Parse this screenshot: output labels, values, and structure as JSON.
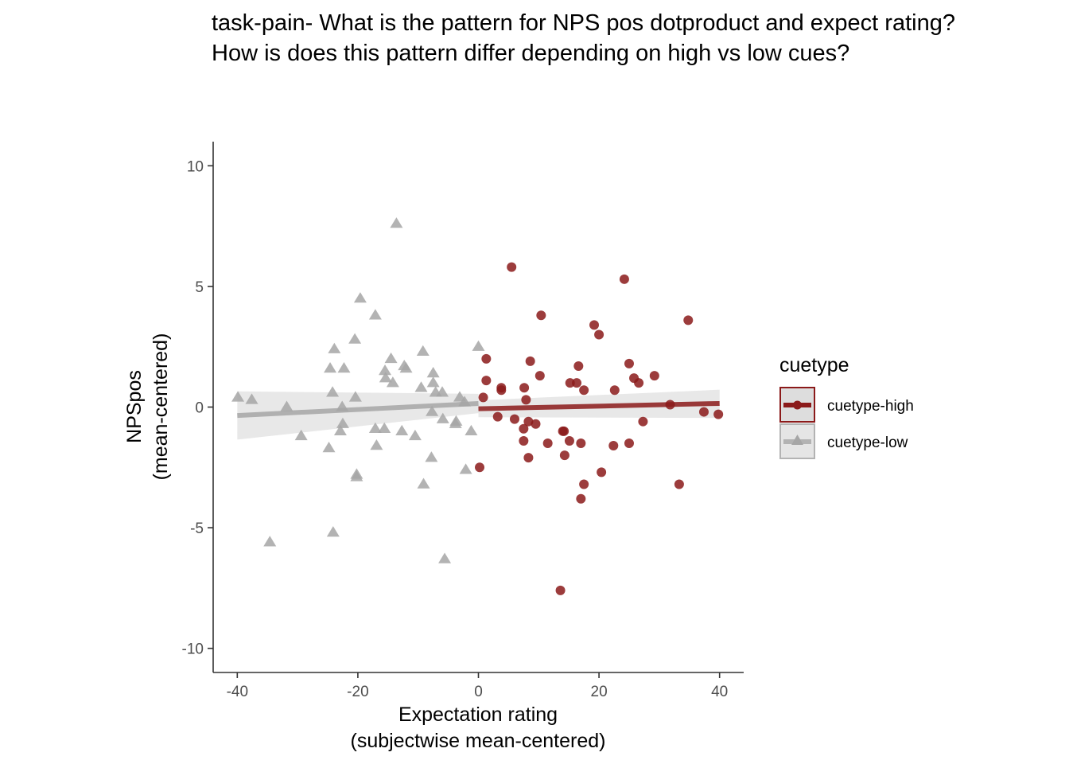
{
  "chart_data": {
    "type": "scatter",
    "title_lines": [
      "task-pain- What is the pattern for NPS pos dotproduct and expect rating?",
      "How is does this pattern differ depending on high vs low cues?"
    ],
    "xlabel_lines": [
      "Expectation rating",
      "(subjectwise mean-centered)"
    ],
    "ylabel_lines": [
      "NPSpos",
      "(mean-centered)"
    ],
    "xlim": [
      -44,
      44
    ],
    "ylim": [
      -11,
      11
    ],
    "x_ticks": [
      -40,
      -20,
      0,
      20,
      40
    ],
    "y_ticks": [
      -10,
      -5,
      0,
      5,
      10
    ],
    "x_tick_labels": [
      "-40",
      "-20",
      "0",
      "20",
      "40"
    ],
    "y_tick_labels": [
      "-10",
      "-5",
      "0",
      "5",
      "10"
    ],
    "grid": false,
    "legend": {
      "title": "cuetype",
      "position": "right",
      "entries": [
        "cuetype-high",
        "cuetype-low"
      ]
    },
    "series": [
      {
        "name": "cuetype-high",
        "marker": "circle",
        "color": "#8b1a1a",
        "points": [
          [
            5.5,
            5.8
          ],
          [
            24.2,
            5.3
          ],
          [
            34.8,
            3.6
          ],
          [
            10.4,
            3.8
          ],
          [
            19.2,
            3.4
          ],
          [
            20.0,
            3.0
          ],
          [
            1.3,
            2.0
          ],
          [
            8.6,
            1.9
          ],
          [
            25.0,
            1.8
          ],
          [
            16.6,
            1.7
          ],
          [
            10.2,
            1.3
          ],
          [
            29.2,
            1.3
          ],
          [
            25.8,
            1.2
          ],
          [
            1.3,
            1.1
          ],
          [
            15.2,
            1.0
          ],
          [
            16.3,
            1.0
          ],
          [
            26.6,
            1.0
          ],
          [
            3.8,
            0.8
          ],
          [
            3.8,
            0.7
          ],
          [
            7.6,
            0.8
          ],
          [
            17.5,
            0.7
          ],
          [
            22.6,
            0.7
          ],
          [
            0.8,
            0.4
          ],
          [
            7.9,
            0.3
          ],
          [
            31.8,
            0.1
          ],
          [
            37.4,
            -0.2
          ],
          [
            39.8,
            -0.3
          ],
          [
            3.2,
            -0.4
          ],
          [
            6.0,
            -0.5
          ],
          [
            8.3,
            -0.6
          ],
          [
            9.5,
            -0.7
          ],
          [
            27.3,
            -0.6
          ],
          [
            7.5,
            -0.9
          ],
          [
            14.0,
            -1.0
          ],
          [
            14.2,
            -1.0
          ],
          [
            7.5,
            -1.4
          ],
          [
            11.5,
            -1.5
          ],
          [
            15.1,
            -1.4
          ],
          [
            17.0,
            -1.5
          ],
          [
            22.4,
            -1.6
          ],
          [
            25.0,
            -1.5
          ],
          [
            14.3,
            -2.0
          ],
          [
            8.3,
            -2.1
          ],
          [
            0.2,
            -2.5
          ],
          [
            20.4,
            -2.7
          ],
          [
            17.5,
            -3.2
          ],
          [
            33.3,
            -3.2
          ],
          [
            17.0,
            -3.8
          ],
          [
            13.6,
            -7.6
          ]
        ],
        "fit": {
          "x0": 0,
          "y0": -0.07,
          "x1": 40,
          "y1": 0.15
        },
        "band": {
          "x": [
            0,
            40
          ],
          "lower": [
            -0.42,
            -0.45
          ],
          "upper": [
            0.28,
            0.72
          ]
        }
      },
      {
        "name": "cuetype-low",
        "marker": "triangle",
        "color": "#a6a6a6",
        "points": [
          [
            -13.6,
            7.6
          ],
          [
            -19.6,
            4.5
          ],
          [
            -17.1,
            3.8
          ],
          [
            -20.5,
            2.8
          ],
          [
            -23.9,
            2.4
          ],
          [
            -9.2,
            2.3
          ],
          [
            0.0,
            2.5
          ],
          [
            -14.5,
            2.0
          ],
          [
            -12.3,
            1.7
          ],
          [
            -12.0,
            1.6
          ],
          [
            -24.6,
            1.6
          ],
          [
            -22.3,
            1.6
          ],
          [
            -15.5,
            1.5
          ],
          [
            -15.4,
            1.2
          ],
          [
            -7.5,
            1.4
          ],
          [
            -14.2,
            1.0
          ],
          [
            -7.5,
            1.0
          ],
          [
            -9.5,
            0.8
          ],
          [
            -7.1,
            0.6
          ],
          [
            -24.2,
            0.6
          ],
          [
            -6.0,
            0.6
          ],
          [
            -39.9,
            0.4
          ],
          [
            -37.6,
            0.3
          ],
          [
            -20.4,
            0.4
          ],
          [
            -3.1,
            0.4
          ],
          [
            -2.3,
            0.2
          ],
          [
            -31.8,
            0.0
          ],
          [
            -22.6,
            0.0
          ],
          [
            -7.7,
            -0.2
          ],
          [
            -22.5,
            -0.7
          ],
          [
            -5.9,
            -0.5
          ],
          [
            -3.8,
            -0.7
          ],
          [
            -3.7,
            -0.6
          ],
          [
            -17.1,
            -0.9
          ],
          [
            -15.6,
            -0.9
          ],
          [
            -12.7,
            -1.0
          ],
          [
            -22.9,
            -1.0
          ],
          [
            -10.5,
            -1.2
          ],
          [
            -29.4,
            -1.2
          ],
          [
            -1.2,
            -1.0
          ],
          [
            -24.8,
            -1.7
          ],
          [
            -16.9,
            -1.6
          ],
          [
            -7.8,
            -2.1
          ],
          [
            -2.1,
            -2.6
          ],
          [
            -20.2,
            -2.8
          ],
          [
            -20.2,
            -2.9
          ],
          [
            -9.1,
            -3.2
          ],
          [
            -24.1,
            -5.2
          ],
          [
            -34.6,
            -5.6
          ],
          [
            -5.6,
            -6.3
          ]
        ],
        "fit": {
          "x0": -40,
          "y0": -0.35,
          "x1": 0,
          "y1": 0.15
        },
        "band": {
          "x": [
            -40,
            0
          ],
          "lower": [
            -1.35,
            -0.25
          ],
          "upper": [
            0.65,
            0.55
          ]
        }
      }
    ]
  }
}
